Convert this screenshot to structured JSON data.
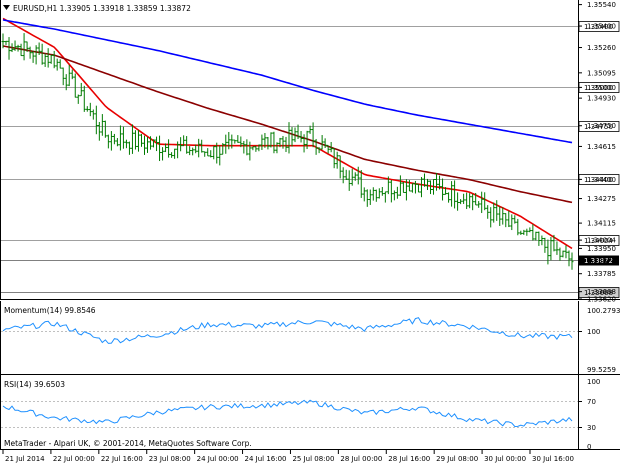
{
  "main_chart": {
    "symbol_header": "EURUSD,H1  1.33905 1.33918 1.33859 1.33872",
    "dropdown_icon": "triangle-down-icon",
    "price_ticks": [
      "1.35540",
      "1.35400",
      "1.35260",
      "1.35095",
      "1.35000",
      "1.34930",
      "1.34750",
      "1.34615",
      "1.34400",
      "1.34275",
      "1.34115",
      "1.34004",
      "1.33950",
      "1.33872",
      "1.33785",
      "1.33668",
      "1.33620"
    ],
    "highlighted_levels": [
      "1.35400",
      "1.35000",
      "1.34750",
      "1.34400",
      "1.34004"
    ],
    "current_price_label": "1.33872",
    "low_price_label": "1.33668",
    "colors": {
      "price_bars": "#007a00",
      "sma_fast": "#e80000",
      "sma_mid": "#8b0000",
      "sma_slow": "#0000ff"
    }
  },
  "momentum_panel": {
    "title": "Momentum(14) 99.8546",
    "ticks": [
      "100.2793",
      "100",
      "99.5259"
    ],
    "color": "#1e90ff"
  },
  "rsi_panel": {
    "title": "RSI(14) 39.6503",
    "ticks": [
      "100",
      "70",
      "30",
      "0"
    ],
    "color": "#1e90ff",
    "copyright": "MetaTrader - Alpari UK, © 2001-2014, MetaQuotes Software Corp."
  },
  "time_axis": [
    "21 Jul 2014",
    "22 Jul 00:00",
    "22 Jul 16:00",
    "23 Jul 08:00",
    "24 Jul 00:00",
    "24 Jul 16:00",
    "25 Jul 08:00",
    "28 Jul 00:00",
    "28 Jul 16:00",
    "29 Jul 08:00",
    "30 Jul 00:00",
    "30 Jul 16:00"
  ],
  "chart_data": [
    {
      "type": "candlestick",
      "title": "EURUSD,H1",
      "ylim": [
        1.3362,
        1.3557
      ],
      "series": [
        {
          "name": "EURUSD",
          "x": [
            "21 Jul 2014",
            "22 Jul 00:00",
            "22 Jul 16:00",
            "23 Jul 08:00",
            "24 Jul 00:00",
            "24 Jul 16:00",
            "25 Jul 08:00",
            "28 Jul 00:00",
            "28 Jul 16:00",
            "29 Jul 08:00",
            "30 Jul 00:00",
            "30 Jul 16:00"
          ],
          "values": [
            1.353,
            1.3518,
            1.3468,
            1.3462,
            1.3458,
            1.3464,
            1.3468,
            1.3432,
            1.3438,
            1.3428,
            1.3405,
            1.3387
          ]
        },
        {
          "values": [
            1.3545,
            1.3526,
            1.3487,
            1.3463,
            1.3462,
            1.3462,
            1.3462,
            1.3443,
            1.3437,
            1.3432,
            1.3416,
            1.3395
          ]
        },
        {
          "values": [
            1.3527,
            1.3521,
            1.3509,
            1.3497,
            1.3486,
            1.3476,
            1.3465,
            1.3453,
            1.3446,
            1.344,
            1.3432,
            1.3425
          ]
        },
        {
          "values": [
            1.3544,
            1.3538,
            1.3531,
            1.3524,
            1.3516,
            1.3508,
            1.3498,
            1.3489,
            1.3482,
            1.3476,
            1.347,
            1.3464
          ]
        }
      ]
    },
    {
      "type": "line",
      "title": "Momentum(14) 99.8546",
      "ylim": [
        99.5259,
        100.2793
      ],
      "series": [
        {
          "values": [
            99.98,
            100.05,
            99.86,
            99.93,
            100.04,
            100.02,
            100.07,
            99.99,
            100.08,
            100.02,
            99.92,
            99.91
          ]
        }
      ]
    },
    {
      "type": "line",
      "title": "RSI(14) 39.6503",
      "ylim": [
        0,
        100
      ],
      "series": [
        {
          "values": [
            58,
            42,
            36,
            50,
            57,
            59,
            63,
            48,
            56,
            40,
            32,
            40
          ]
        }
      ]
    }
  ]
}
